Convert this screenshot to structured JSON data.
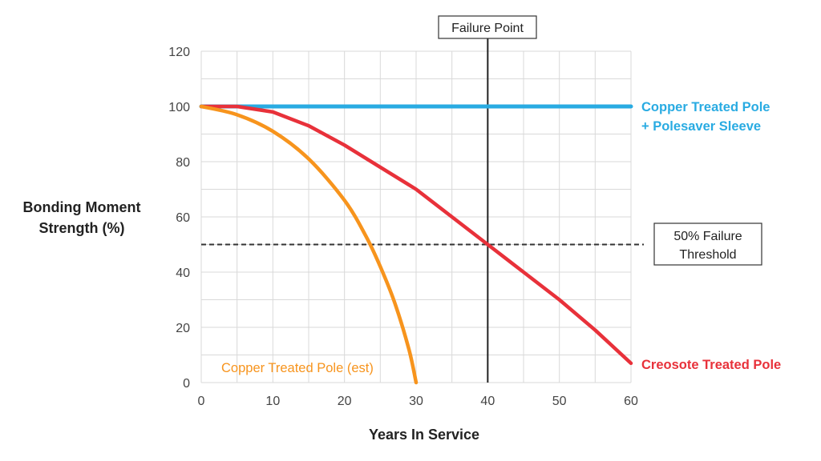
{
  "chart_data": {
    "type": "line",
    "xlabel": "Years In Service",
    "ylabel_lines": [
      "Bonding Moment",
      "Strength (%)"
    ],
    "xlim": [
      0,
      60
    ],
    "ylim": [
      0,
      120
    ],
    "x_ticks": [
      0,
      10,
      20,
      30,
      40,
      50,
      60
    ],
    "y_ticks": [
      0,
      20,
      40,
      60,
      80,
      100,
      120
    ],
    "grid": true,
    "series": [
      {
        "name": "Copper Treated Pole + Polesaver Sleeve",
        "label_lines": [
          "Copper Treated Pole",
          "+ Polesaver Sleeve"
        ],
        "color": "#29abe2",
        "x": [
          0,
          60
        ],
        "y": [
          100,
          100
        ]
      },
      {
        "name": "Creosote Treated Pole",
        "label_lines": [
          "Creosote Treated Pole"
        ],
        "color": "#e8313a",
        "x": [
          0,
          5,
          10,
          15,
          20,
          25,
          30,
          35,
          40,
          45,
          50,
          55,
          60
        ],
        "y": [
          100,
          100,
          98,
          93,
          86,
          78,
          70,
          60,
          50,
          40,
          30,
          19,
          7
        ]
      },
      {
        "name": "Copper Treated Pole (est)",
        "label_lines": [
          "Copper Treated Pole (est)"
        ],
        "color": "#f7941d",
        "x": [
          0,
          5,
          10,
          15,
          20,
          23,
          25,
          27,
          29,
          30
        ],
        "y": [
          100,
          97,
          91,
          81,
          66,
          53,
          42,
          29,
          12,
          0
        ]
      }
    ],
    "annotations": [
      {
        "name": "Failure Point",
        "text": "Failure Point",
        "type": "vertical-line",
        "x": 40,
        "color": "#222222"
      },
      {
        "name": "50% Failure Threshold",
        "text_lines": [
          "50% Failure",
          "Threshold"
        ],
        "type": "horizontal-dashed-line",
        "y": 50,
        "color": "#333333"
      }
    ]
  }
}
